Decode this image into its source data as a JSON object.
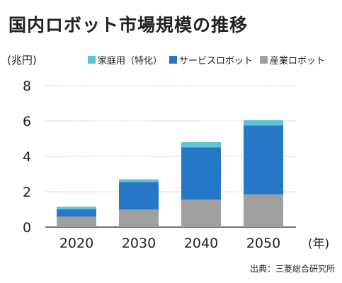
{
  "title": "国内ロボット市場規模の推移",
  "unit": "(兆円)",
  "x_unit": "(年)",
  "source": "出典：三菱総合研究所",
  "chart_data": {
    "type": "bar",
    "stacked": true,
    "categories": [
      "2020",
      "2030",
      "2040",
      "2050"
    ],
    "series": [
      {
        "name": "産業ロボット",
        "color": "#a0a0a0",
        "values": [
          0.6,
          1.0,
          1.55,
          1.85
        ]
      },
      {
        "name": "サービスロボット",
        "color": "#2577c8",
        "values": [
          0.4,
          1.55,
          2.95,
          3.9
        ]
      },
      {
        "name": "家庭用（特化）",
        "color": "#5bc3d2",
        "values": [
          0.15,
          0.15,
          0.3,
          0.3
        ]
      }
    ],
    "ylim": [
      0,
      8
    ],
    "yticks": [
      0,
      2,
      4,
      6,
      8
    ],
    "grid": true,
    "legend_position": "top-right"
  }
}
